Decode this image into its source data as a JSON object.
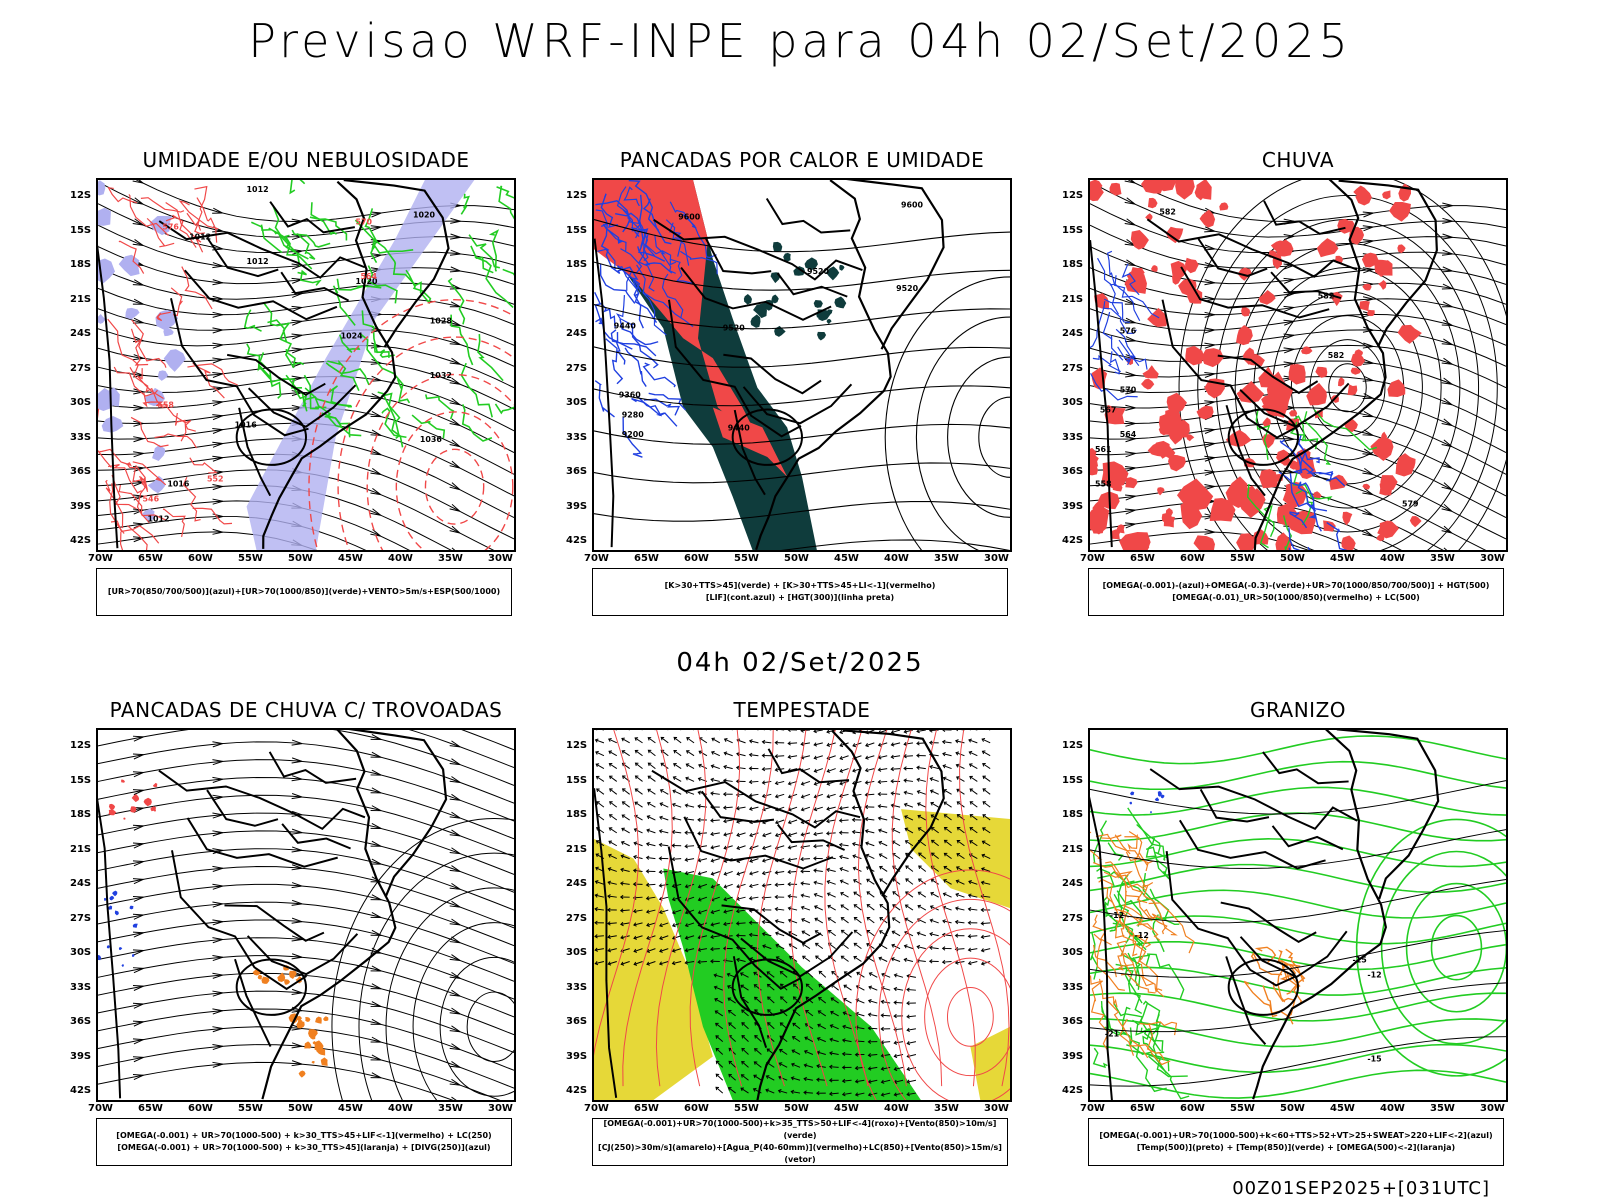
{
  "title": "Previsao WRF-INPE  para 04h 02/Set/2025",
  "mid_title": "04h 02/Set/2025",
  "footer": "00Z01SEP2025+[031UTC]",
  "lat_ticks": [
    "12S",
    "15S",
    "18S",
    "21S",
    "24S",
    "27S",
    "30S",
    "33S",
    "36S",
    "39S",
    "42S"
  ],
  "lon_ticks": [
    "70W",
    "65W",
    "60W",
    "55W",
    "50W",
    "45W",
    "40W",
    "35W",
    "30W"
  ],
  "panels": [
    {
      "title": "UMIDADE E/OU NEBULOSIDADE",
      "legend": [
        "[UR>70(850/700/500)](azul)+[UR>70(1000/850)](verde)+VENTO>5m/s+ESP(500/1000)"
      ],
      "labels": [
        "1012",
        "1012",
        "1012",
        "1020",
        "1020",
        "1024",
        "1028",
        "1032",
        "1036",
        "1016",
        "1016",
        "1012",
        "570",
        "576",
        "564",
        "558",
        "552",
        "546"
      ]
    },
    {
      "title": "PANCADAS POR CALOR E UMIDADE",
      "legend": [
        "[K>30+TTS>45](verde) + [K>30+TTS>45+LI<-1](vermelho)",
        "[LIF](cont.azul) + [HGT(300)](linha preta)"
      ],
      "labels": [
        "9600",
        "9600",
        "9520",
        "9520",
        "9520",
        "9440",
        "9440",
        "9360",
        "9280",
        "9200"
      ]
    },
    {
      "title": "CHUVA",
      "legend": [
        "[OMEGA(-0.001)-(azul)+OMEGA(-0.3)-(verde)+UR>70(1000/850/700/500)] + HGT(500)",
        "[OMEGA(-0.01)_UR>50(1000/850)(vermelho) + LC(500)"
      ],
      "labels": [
        "582",
        "582",
        "582",
        "576",
        "570",
        "564",
        "561",
        "558",
        "579",
        "567"
      ]
    },
    {
      "title": "PANCADAS DE CHUVA C/ TROVOADAS",
      "legend": [
        "[OMEGA(-0.001) + UR>70(1000-500) + k>30_TTS>45+LIF<-1](vermelho) + LC(250)",
        "[OMEGA(-0.001) + UR>70(1000-500) + k>30_TTS>45](laranja) + [DIVG(250)](azul)"
      ],
      "labels": []
    },
    {
      "title": "TEMPESTADE",
      "legend": [
        "[OMEGA(-0.001)+UR>70(1000-500)+k>35_TTS>50+LIF<-4](roxo)+[Vento(850)>10m/s](verde)",
        "[CJ(250)>30m/s](amarelo)+[Agua_P(40-60mm)](vermelho)+LC(850)+[Vento(850)>15m/s](vetor)"
      ],
      "labels": []
    },
    {
      "title": "GRANIZO",
      "legend": [
        "[OMEGA(-0.001)+UR>70(1000-500)+k<60+TTS>52+VT>25+SWEAT>220+LIF<-2](azul)",
        "[Temp(500)](preto) + [Temp(850)](verde) + [OMEGA(500)<-2](laranja)"
      ],
      "labels": [
        "-12",
        "-12",
        "-15",
        "-15",
        "-21",
        "-12"
      ]
    }
  ],
  "colors": {
    "red": "#f04848",
    "green": "#22cc22",
    "blue": "#2040e0",
    "lavender": "#b0b0f0",
    "darkteal": "#0f3c3c",
    "yellow": "#e6d838",
    "orange": "#f08020"
  }
}
